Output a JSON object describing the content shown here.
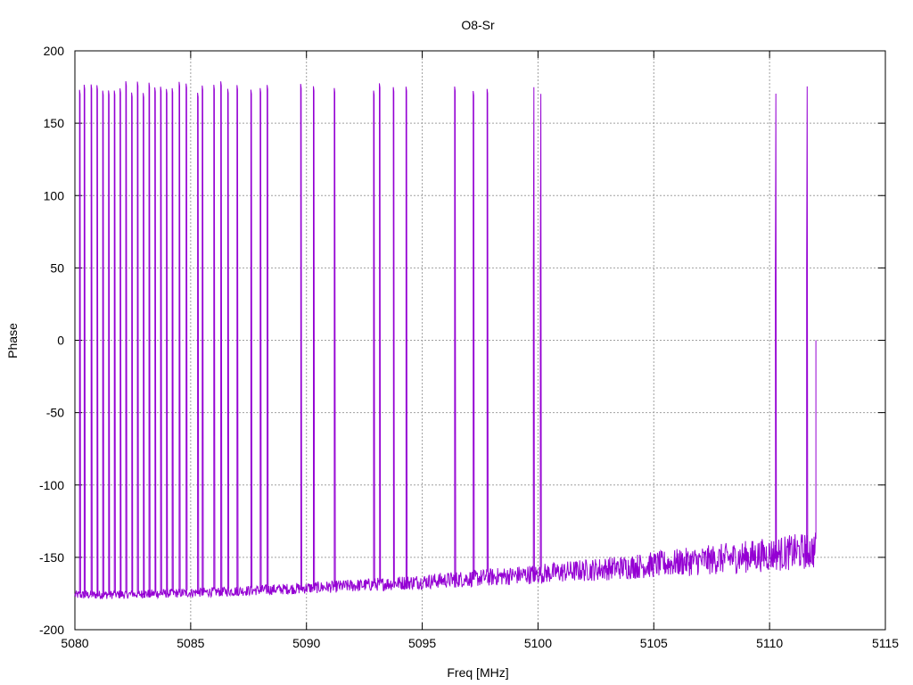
{
  "chart_data": {
    "type": "line",
    "title": "O8-Sr",
    "xlabel": "Freq [MHz]",
    "ylabel": "Phase",
    "xlim": [
      5080,
      5115
    ],
    "ylim": [
      -200,
      200
    ],
    "xticks": [
      "5080",
      "5085",
      "5090",
      "5095",
      "5100",
      "5105",
      "5110",
      "5115"
    ],
    "yticks": [
      "200",
      "150",
      "100",
      "50",
      "0",
      "-50",
      "-100",
      "-150",
      "-200"
    ],
    "grid": true,
    "series": [
      {
        "color": "#9400d3",
        "x_range": [
          5080,
          5112
        ],
        "baseline_start": -176,
        "baseline_end": -145,
        "wrap_frequencies": [
          5080.2,
          5080.4,
          5080.7,
          5080.95,
          5081.2,
          5081.45,
          5081.7,
          5081.95,
          5082.2,
          5082.45,
          5082.7,
          5082.95,
          5083.2,
          5083.45,
          5083.7,
          5083.95,
          5084.2,
          5084.5,
          5084.8,
          5085.3,
          5085.5,
          5086.0,
          5086.3,
          5086.6,
          5087.0,
          5087.6,
          5088.0,
          5088.3,
          5089.75,
          5090.3,
          5091.2,
          5092.9,
          5093.15,
          5093.75,
          5094.3,
          5096.4,
          5097.2,
          5097.8,
          5099.8,
          5100.1,
          5110.25,
          5111.6
        ],
        "end_value": 0
      }
    ]
  }
}
